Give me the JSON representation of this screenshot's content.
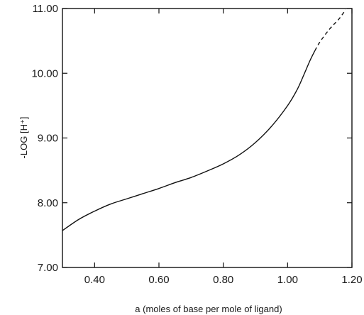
{
  "chart_data": {
    "type": "line",
    "title": "",
    "xlabel": "a (moles of base per mole of ligand)",
    "ylabel": "-LOG [H⁺]",
    "xlim": [
      0.3,
      1.2
    ],
    "ylim": [
      7.0,
      11.0
    ],
    "x_ticks": [
      0.4,
      0.6,
      0.8,
      1.0,
      1.2
    ],
    "y_ticks": [
      7.0,
      8.0,
      9.0,
      10.0,
      11.0
    ],
    "x_tick_labels": [
      "0.40",
      "0.60",
      "0.80",
      "1.00",
      "1.20"
    ],
    "y_tick_labels": [
      "7.00",
      "8.00",
      "9.00",
      "10.00",
      "11.00"
    ],
    "grid": false,
    "series": [
      {
        "style": "solid",
        "points": [
          [
            0.3,
            7.57
          ],
          [
            0.35,
            7.74
          ],
          [
            0.4,
            7.87
          ],
          [
            0.45,
            7.98
          ],
          [
            0.5,
            8.06
          ],
          [
            0.55,
            8.14
          ],
          [
            0.6,
            8.22
          ],
          [
            0.65,
            8.31
          ],
          [
            0.7,
            8.39
          ],
          [
            0.75,
            8.49
          ],
          [
            0.8,
            8.6
          ],
          [
            0.85,
            8.74
          ],
          [
            0.9,
            8.93
          ],
          [
            0.95,
            9.18
          ],
          [
            1.0,
            9.5
          ],
          [
            1.03,
            9.75
          ],
          [
            1.05,
            9.97
          ],
          [
            1.07,
            10.2
          ],
          [
            1.085,
            10.35
          ]
        ]
      },
      {
        "style": "dashed",
        "points": [
          [
            1.085,
            10.35
          ],
          [
            1.1,
            10.48
          ],
          [
            1.13,
            10.68
          ],
          [
            1.16,
            10.84
          ],
          [
            1.18,
            10.98
          ]
        ]
      }
    ]
  }
}
